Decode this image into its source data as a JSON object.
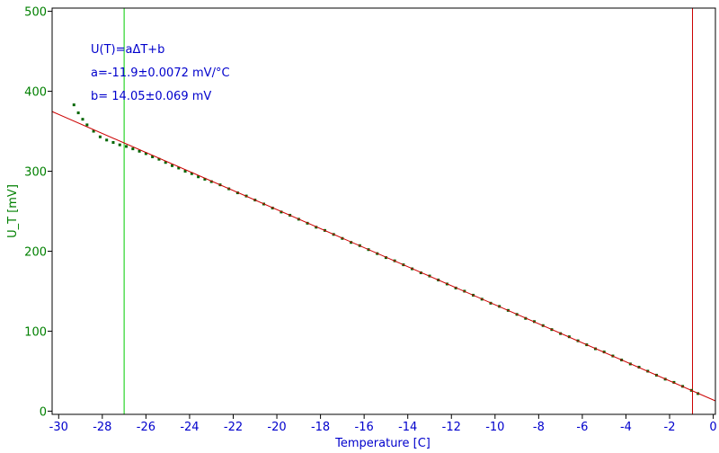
{
  "chart_data": {
    "type": "scatter",
    "xlabel": "Temperature [C]",
    "ylabel": "U_T [mV]",
    "xlim": [
      -30.3,
      0.1
    ],
    "ylim": [
      -4,
      504
    ],
    "x_ticks": [
      -30,
      -28,
      -26,
      -24,
      -22,
      -20,
      -18,
      -16,
      -14,
      -12,
      -10,
      -8,
      -6,
      -4,
      -2,
      0
    ],
    "y_ticks": [
      0,
      100,
      200,
      300,
      400,
      500
    ],
    "grid": false,
    "legend": "none",
    "annotations": [
      "U(T)=aΔT+b",
      "a=-11.9±0.0072 mV/°C",
      "b= 14.05±0.069 mV"
    ],
    "fit_line": {
      "slope": -11.9,
      "intercept": 14.05,
      "x_range": [
        -30.3,
        0.1
      ]
    },
    "vertical_markers": [
      {
        "x": -27,
        "color": "#00cc00"
      },
      {
        "x": -0.95,
        "color": "#cc0000"
      }
    ],
    "series": [
      {
        "color": "#006600",
        "points": [
          [
            -29.3,
            383
          ],
          [
            -29.1,
            373
          ],
          [
            -28.9,
            365
          ],
          [
            -28.7,
            358
          ],
          [
            -28.4,
            350
          ],
          [
            -28.1,
            343
          ],
          [
            -27.8,
            339
          ],
          [
            -27.5,
            336
          ],
          [
            -27.2,
            333
          ],
          [
            -26.9,
            331
          ],
          [
            -26.6,
            328
          ],
          [
            -26.3,
            325
          ],
          [
            -26.0,
            322
          ],
          [
            -25.7,
            318
          ],
          [
            -25.4,
            315
          ],
          [
            -25.1,
            311
          ],
          [
            -24.8,
            307
          ],
          [
            -24.5,
            304
          ],
          [
            -24.2,
            300
          ],
          [
            -23.9,
            297
          ],
          [
            -23.6,
            293
          ],
          [
            -23.3,
            290
          ],
          [
            -23.0,
            287
          ],
          [
            -22.6,
            283
          ],
          [
            -22.2,
            278
          ],
          [
            -21.8,
            273
          ],
          [
            -21.4,
            269
          ],
          [
            -21.0,
            264
          ],
          [
            -20.6,
            259
          ],
          [
            -20.2,
            254
          ],
          [
            -19.8,
            249
          ],
          [
            -19.4,
            245
          ],
          [
            -19.0,
            240
          ],
          [
            -18.6,
            235
          ],
          [
            -18.2,
            230
          ],
          [
            -17.8,
            226
          ],
          [
            -17.4,
            221
          ],
          [
            -17.0,
            216
          ],
          [
            -16.6,
            211
          ],
          [
            -16.2,
            207
          ],
          [
            -15.8,
            202
          ],
          [
            -15.4,
            197
          ],
          [
            -15.0,
            192
          ],
          [
            -14.6,
            188
          ],
          [
            -14.2,
            183
          ],
          [
            -13.8,
            178
          ],
          [
            -13.4,
            173
          ],
          [
            -13.0,
            169
          ],
          [
            -12.6,
            164
          ],
          [
            -12.2,
            159
          ],
          [
            -11.8,
            154
          ],
          [
            -11.4,
            150
          ],
          [
            -11.0,
            145
          ],
          [
            -10.6,
            140
          ],
          [
            -10.2,
            135
          ],
          [
            -9.8,
            131
          ],
          [
            -9.4,
            126
          ],
          [
            -9.0,
            121
          ],
          [
            -8.6,
            116
          ],
          [
            -8.2,
            112
          ],
          [
            -7.8,
            107
          ],
          [
            -7.4,
            102
          ],
          [
            -7.0,
            97
          ],
          [
            -6.6,
            93
          ],
          [
            -6.2,
            88
          ],
          [
            -5.8,
            83
          ],
          [
            -5.4,
            78
          ],
          [
            -5.0,
            74
          ],
          [
            -4.6,
            69
          ],
          [
            -4.2,
            64
          ],
          [
            -3.8,
            59
          ],
          [
            -3.4,
            55
          ],
          [
            -3.0,
            50
          ],
          [
            -2.6,
            45
          ],
          [
            -2.2,
            40
          ],
          [
            -1.8,
            36
          ],
          [
            -1.4,
            31
          ],
          [
            -1.0,
            26
          ],
          [
            -0.7,
            22
          ]
        ]
      }
    ]
  }
}
